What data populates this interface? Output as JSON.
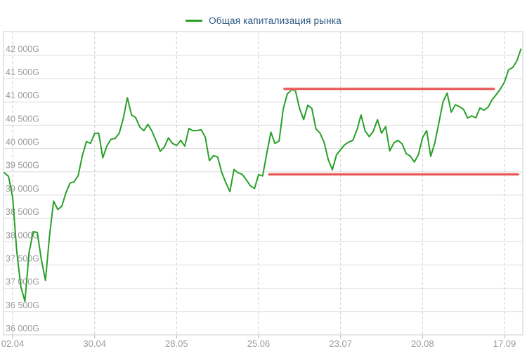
{
  "legend": {
    "label": "Общая капитализация рынка"
  },
  "colors": {
    "background": "#ffffff",
    "series_green": "#28a028",
    "level_red": "#e64c4c",
    "level_red_halo": "#f3b0b0",
    "legend_text": "#2a5780",
    "axis_label": "#9b9b9b",
    "h_grid": "#dcdcdc",
    "v_grid": "#cfcfcf",
    "plot_border": "#c9d2da",
    "tick": "#b0b0b0"
  },
  "y_axis": {
    "unit": "G",
    "min": 36000,
    "max": 42510,
    "tick_step": 500,
    "tick_values": [
      36000,
      36500,
      37000,
      37500,
      38000,
      38500,
      39000,
      39500,
      40000,
      40500,
      41000,
      41500,
      42000
    ],
    "tick_labels": [
      "36 000G",
      "36 500G",
      "37 000G",
      "37 500G",
      "38 000G",
      "38 500G",
      "39 000G",
      "39 500G",
      "40 000G",
      "40 500G",
      "41 000G",
      "41 500G",
      "42 000G"
    ]
  },
  "x_axis": {
    "tick_labels": [
      "02.04",
      "30.04",
      "28.05",
      "25.06",
      "23.07",
      "20.08",
      "17.09"
    ],
    "tick_indices": [
      2,
      22,
      42,
      62,
      82,
      102,
      122
    ]
  },
  "chart_data": {
    "type": "line",
    "title": "Общая капитализация рынка",
    "grid": true,
    "legend_position": "top-center",
    "ylim": [
      36000,
      42510
    ],
    "series": [
      {
        "name": "Общая капитализация рынка",
        "color": "#28a028",
        "dates": [
          "29.03",
          "30.03",
          "02.04",
          "03.04",
          "04.04",
          "05.04",
          "06.04",
          "09.04",
          "10.04",
          "11.04",
          "12.04",
          "13.04",
          "16.04",
          "17.04",
          "18.04",
          "19.04",
          "20.04",
          "23.04",
          "24.04",
          "25.04",
          "26.04",
          "27.04",
          "30.04",
          "01.05",
          "02.05",
          "03.05",
          "04.05",
          "07.05",
          "08.05",
          "09.05",
          "10.05",
          "11.05",
          "14.05",
          "15.05",
          "16.05",
          "17.05",
          "18.05",
          "21.05",
          "22.05",
          "23.05",
          "24.05",
          "25.05",
          "28.05",
          "29.05",
          "30.05",
          "31.05",
          "01.06",
          "04.06",
          "05.06",
          "06.06",
          "07.06",
          "08.06",
          "11.06",
          "12.06",
          "13.06",
          "14.06",
          "15.06",
          "18.06",
          "19.06",
          "20.06",
          "21.06",
          "22.06",
          "25.06",
          "26.06",
          "27.06",
          "28.06",
          "29.06",
          "02.07",
          "03.07",
          "04.07",
          "05.07",
          "06.07",
          "09.07",
          "10.07",
          "11.07",
          "12.07",
          "13.07",
          "16.07",
          "17.07",
          "18.07",
          "19.07",
          "20.07",
          "23.07",
          "24.07",
          "25.07",
          "26.07",
          "27.07",
          "30.07",
          "31.07",
          "01.08",
          "02.08",
          "03.08",
          "06.08",
          "07.08",
          "08.08",
          "09.08",
          "10.08",
          "13.08",
          "14.08",
          "15.08",
          "16.08",
          "17.08",
          "20.08",
          "21.08",
          "22.08",
          "23.08",
          "24.08",
          "27.08",
          "28.08",
          "29.08",
          "30.08",
          "31.08",
          "03.09",
          "04.09",
          "05.09",
          "06.09",
          "07.09",
          "10.09",
          "11.09",
          "12.09",
          "13.09",
          "14.09",
          "17.09",
          "18.09",
          "19.09",
          "20.09",
          "21.09"
        ],
        "values": [
          39480,
          39400,
          38950,
          37800,
          37030,
          36720,
          37760,
          38215,
          38200,
          37620,
          37170,
          38130,
          38870,
          38690,
          38760,
          39050,
          39260,
          39285,
          39420,
          39850,
          40150,
          40110,
          40325,
          40330,
          39800,
          40060,
          40200,
          40215,
          40330,
          40650,
          41090,
          40720,
          40665,
          40465,
          40380,
          40520,
          40370,
          40160,
          39940,
          40030,
          40230,
          40110,
          40065,
          40175,
          40050,
          40430,
          40380,
          40385,
          40405,
          40240,
          39740,
          39845,
          39820,
          39490,
          39270,
          39075,
          39550,
          39480,
          39445,
          39330,
          39200,
          39140,
          39440,
          39410,
          39900,
          40350,
          40110,
          40160,
          40840,
          41170,
          41255,
          41240,
          40860,
          40620,
          40930,
          40860,
          40420,
          40330,
          40130,
          39760,
          39545,
          39860,
          39975,
          40080,
          40140,
          40175,
          40400,
          40720,
          40375,
          40255,
          40370,
          40620,
          40330,
          40470,
          39950,
          40120,
          40175,
          40100,
          39890,
          39840,
          39710,
          39870,
          40230,
          40385,
          39830,
          40120,
          40560,
          41000,
          41190,
          40780,
          40940,
          40900,
          40840,
          40655,
          40700,
          40660,
          40870,
          40820,
          40890,
          41050,
          41160,
          41280,
          41430,
          41690,
          41740,
          41880,
          42130
        ]
      }
    ],
    "levels": [
      {
        "name": "resistance",
        "value": 41280,
        "from_date": "04.07",
        "to_date": "13.09",
        "from_index": 68.3,
        "to_index": 119.4
      },
      {
        "name": "support",
        "value": 39445,
        "from_date": "28.06",
        "to_date": "20.09",
        "from_index": 64.6,
        "to_index": 125.3
      }
    ]
  }
}
